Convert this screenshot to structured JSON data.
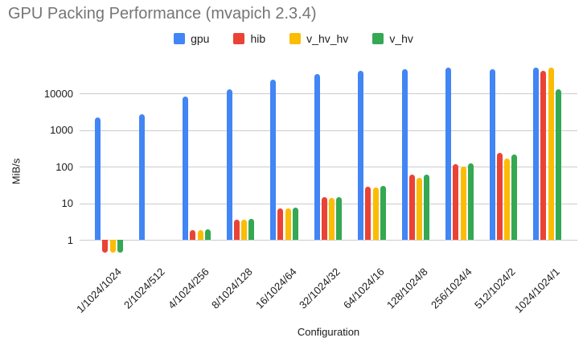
{
  "chart_data": {
    "type": "bar",
    "title": "GPU Packing Performance (mvapich 2.3.4)",
    "xlabel": "Configuration",
    "ylabel": "MiB/s",
    "y_scale": "log",
    "ylim": [
      0.45,
      60000
    ],
    "y_ticks": [
      1,
      10,
      100,
      1000,
      10000
    ],
    "grid": true,
    "legend_position": "top",
    "categories": [
      "1/1024/1024",
      "2/1024/512",
      "4/1024/256",
      "8/1024/128",
      "16/1024/64",
      "32/1024/32",
      "64/1024/16",
      "128/1024/8",
      "256/1024/4",
      "512/1024/2",
      "1024/1024/1"
    ],
    "series": [
      {
        "name": "gpu",
        "color": "#4285F4",
        "values": [
          2200,
          2700,
          8200,
          13000,
          24000,
          35000,
          43000,
          47000,
          51000,
          46000,
          53000
        ]
      },
      {
        "name": "hib",
        "color": "#EA4335",
        "values": [
          0.45,
          null,
          1.8,
          3.6,
          7.4,
          15,
          29,
          61,
          120,
          240,
          42000
        ]
      },
      {
        "name": "v_hv_hv",
        "color": "#FBBC04",
        "values": [
          0.45,
          null,
          1.8,
          3.6,
          7.2,
          14,
          27,
          51,
          100,
          170,
          51000
        ]
      },
      {
        "name": "v_hv",
        "color": "#34A853",
        "values": [
          0.45,
          null,
          1.9,
          3.7,
          7.6,
          15,
          30,
          62,
          125,
          220,
          13000
        ]
      }
    ]
  }
}
